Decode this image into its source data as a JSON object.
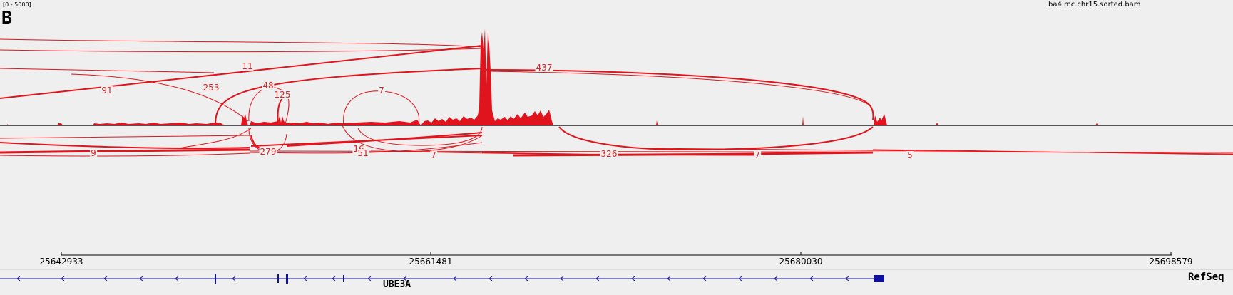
{
  "header": {
    "data_range": "[0 - 5000]",
    "panel_letter": "B",
    "track_name": "ba4.mc.chr15.sorted.bam"
  },
  "colors": {
    "coverage": "#e0141c",
    "junction": "#e0141c",
    "gene": "#1010a0",
    "background": "#efefef"
  },
  "junctions": {
    "top": [
      "11",
      "437",
      "91",
      "253",
      "48",
      "125",
      "7"
    ],
    "bottom": [
      "9",
      "279",
      "16",
      "51",
      "7",
      "326",
      "7",
      "5"
    ]
  },
  "axis": {
    "ticks": [
      "25642933",
      "25661481",
      "25680030",
      "25698579"
    ]
  },
  "gene": {
    "name": "UBE3A",
    "strand": "minus",
    "track_label": "RefSeq"
  }
}
